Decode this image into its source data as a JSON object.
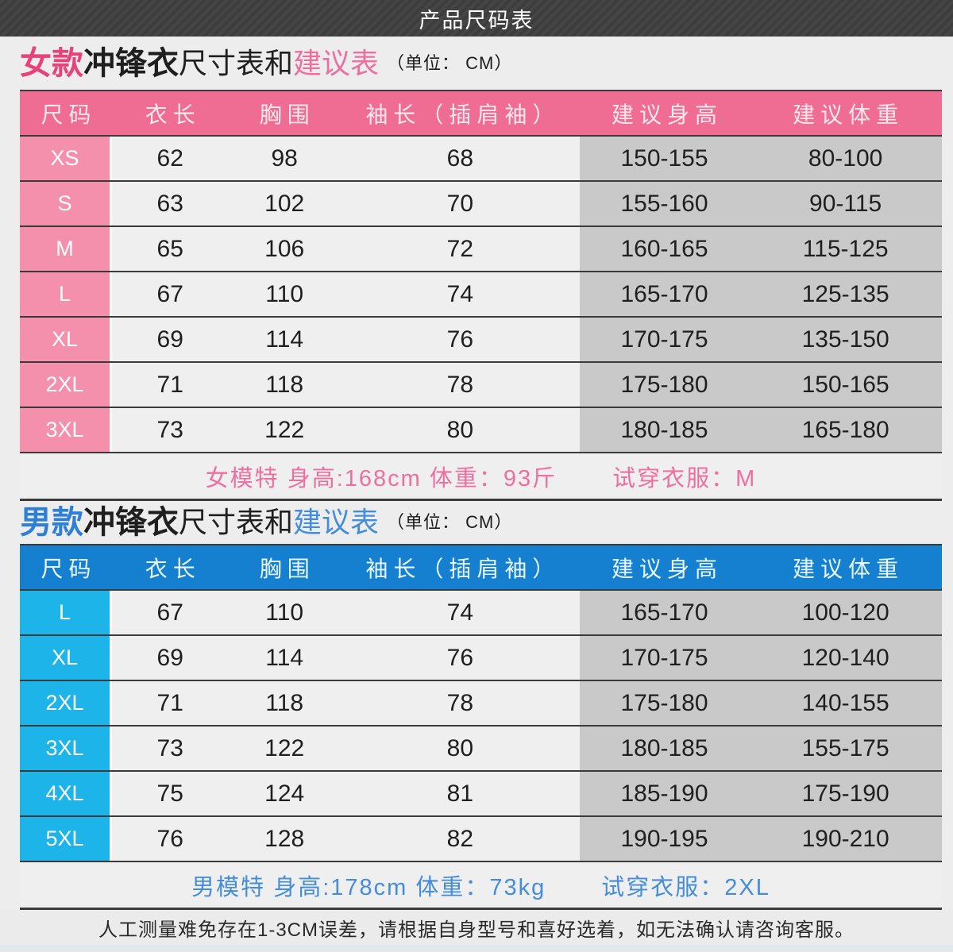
{
  "banner": {
    "title": "产品尺码表"
  },
  "women": {
    "title": {
      "brand": "女款",
      "product": "冲锋衣",
      "middle": "尺寸表和",
      "highlight": "建议表",
      "unit": "（单位： CM）"
    },
    "columns": [
      "尺码",
      "衣长",
      "胸围",
      "袖长（插肩袖）",
      "建议身高",
      "建议体重"
    ],
    "rows": [
      {
        "size": "XS",
        "values": [
          "62",
          "98",
          "68",
          "150-155",
          "80-100"
        ]
      },
      {
        "size": "S",
        "values": [
          "63",
          "102",
          "70",
          "155-160",
          "90-115"
        ]
      },
      {
        "size": "M",
        "values": [
          "65",
          "106",
          "72",
          "160-165",
          "115-125"
        ]
      },
      {
        "size": "L",
        "values": [
          "67",
          "110",
          "74",
          "165-170",
          "125-135"
        ]
      },
      {
        "size": "XL",
        "values": [
          "69",
          "114",
          "76",
          "170-175",
          "135-150"
        ]
      },
      {
        "size": "2XL",
        "values": [
          "71",
          "118",
          "78",
          "175-180",
          "150-165"
        ]
      },
      {
        "size": "3XL",
        "values": [
          "73",
          "122",
          "80",
          "180-185",
          "165-180"
        ]
      }
    ],
    "footer": {
      "model": "女模特 身高:168cm 体重：93斤",
      "fit": "试穿衣服：M"
    }
  },
  "men": {
    "title": {
      "brand": "男款",
      "product": "冲锋衣",
      "middle": "尺寸表和",
      "highlight": "建议表",
      "unit": "（单位： CM）"
    },
    "columns": [
      "尺码",
      "衣长",
      "胸围",
      "袖长（插肩袖）",
      "建议身高",
      "建议体重"
    ],
    "rows": [
      {
        "size": "L",
        "values": [
          "67",
          "110",
          "74",
          "165-170",
          "100-120"
        ]
      },
      {
        "size": "XL",
        "values": [
          "69",
          "114",
          "76",
          "170-175",
          "120-140"
        ]
      },
      {
        "size": "2XL",
        "values": [
          "71",
          "118",
          "78",
          "175-180",
          "140-155"
        ]
      },
      {
        "size": "3XL",
        "values": [
          "73",
          "122",
          "80",
          "180-185",
          "155-175"
        ]
      },
      {
        "size": "4XL",
        "values": [
          "75",
          "124",
          "81",
          "185-190",
          "175-190"
        ]
      },
      {
        "size": "5XL",
        "values": [
          "76",
          "128",
          "82",
          "190-195",
          "190-210"
        ]
      }
    ],
    "footer": {
      "model": "男模特 身高:178cm 体重：73kg",
      "fit": "试穿衣服：2XL"
    }
  },
  "note": "人工测量难免存在1-3CM误差，请根据自身型号和喜好选着，如无法确认请咨询客服。",
  "colors": {
    "women_header_bg": "#ef6d92",
    "women_size_bg": "#f48fac",
    "women_accent": "#e7437a",
    "women_light": "#ee6f9f",
    "men_header_bg": "#1580d0",
    "men_size_bg": "#1db4e9",
    "men_accent": "#2e80d5",
    "men_light": "#448dda",
    "cell_light": "#efefef",
    "cell_gray": "#c9c9c9",
    "banner_bg": "#454545",
    "banner_text": "#ffffff"
  }
}
